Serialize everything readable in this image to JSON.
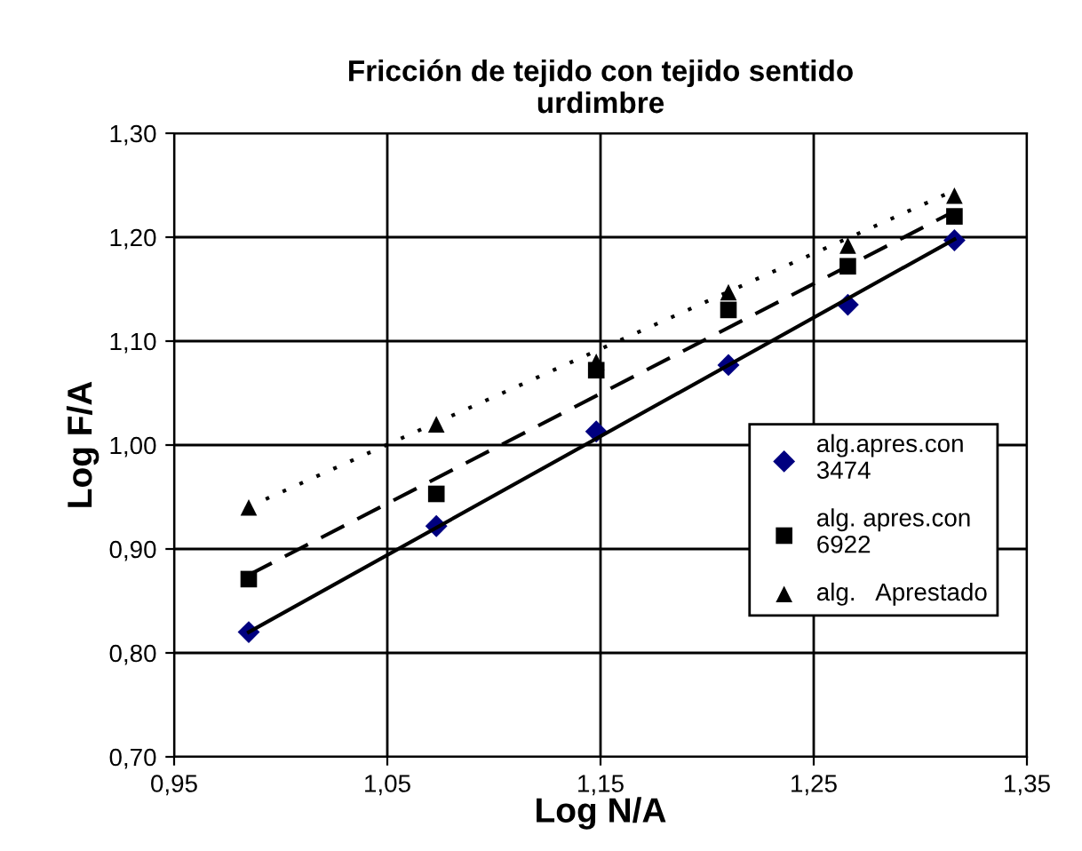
{
  "chart_data": {
    "type": "scatter",
    "title": "Fricción de tejido con tejido sentido\nurdimbre",
    "xlabel": "Log N/A",
    "ylabel": "Log F/A",
    "x": [
      0.985,
      1.073,
      1.148,
      1.21,
      1.266,
      1.316
    ],
    "series": [
      {
        "name": "alg.apres.con 3474",
        "color": "#000080",
        "marker": "diamond",
        "values": [
          0.82,
          0.922,
          1.013,
          1.077,
          1.135,
          1.197
        ]
      },
      {
        "name": "alg. apres.con 6922",
        "color": "#000000",
        "marker": "square",
        "values": [
          0.871,
          0.953,
          1.072,
          1.13,
          1.172,
          1.22
        ]
      },
      {
        "name": "alg.   Aprestado",
        "color": "#000000",
        "marker": "triangle",
        "values": [
          0.94,
          1.02,
          1.08,
          1.147,
          1.192,
          1.24
        ]
      },
      {
        "type": "line",
        "color": "#000000",
        "line_style": "solid",
        "x": [
          0.985,
          1.316
        ],
        "values": [
          0.82,
          1.198
        ]
      },
      {
        "type": "line",
        "color": "#000000",
        "line_style": "dashed",
        "x": [
          0.985,
          1.316
        ],
        "values": [
          0.875,
          1.225
        ]
      },
      {
        "type": "line",
        "color": "#000000",
        "line_style": "dotted",
        "x": [
          0.993,
          1.316
        ],
        "values": [
          0.948,
          1.245
        ]
      }
    ],
    "xlim": [
      0.95,
      1.35
    ],
    "ylim": [
      0.7,
      1.3
    ],
    "xticks": [
      {
        "value": 0.95,
        "label": "0,95"
      },
      {
        "value": 1.05,
        "label": "1,05"
      },
      {
        "value": 1.15,
        "label": "1,15"
      },
      {
        "value": 1.25,
        "label": "1,25"
      },
      {
        "value": 1.35,
        "label": "1,35"
      }
    ],
    "yticks": [
      {
        "value": 0.7,
        "label": "0,70"
      },
      {
        "value": 0.8,
        "label": "0,80"
      },
      {
        "value": 0.9,
        "label": "0,90"
      },
      {
        "value": 1.0,
        "label": "1,00"
      },
      {
        "value": 1.1,
        "label": "1,10"
      },
      {
        "value": 1.2,
        "label": "1,20"
      },
      {
        "value": 1.3,
        "label": "1,30"
      }
    ],
    "grid": true,
    "legend": "right"
  }
}
